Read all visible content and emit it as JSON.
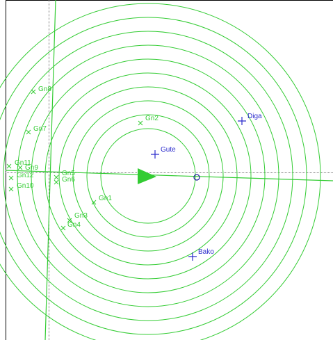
{
  "colors": {
    "rings": "#33cc33",
    "guide": "#888888",
    "frame": "#000000",
    "station": "#2b2bcc",
    "background": "#ffffff"
  },
  "stations": [
    {
      "name": "Gute",
      "icon": "plus-marker-icon"
    },
    {
      "name": "Diga",
      "icon": "plus-marker-icon"
    },
    {
      "name": "Bako",
      "icon": "plus-marker-icon"
    }
  ],
  "grid_nodes": [
    {
      "name": "Gn1"
    },
    {
      "name": "Gn2"
    },
    {
      "name": "Gn3"
    },
    {
      "name": "Gn4"
    },
    {
      "name": "Gn5"
    },
    {
      "name": "Gn6"
    },
    {
      "name": "Gn7"
    },
    {
      "name": "Gn8"
    },
    {
      "name": "Gn9"
    },
    {
      "name": "Gn10"
    },
    {
      "name": "Gn11"
    },
    {
      "name": "Gn12"
    }
  ],
  "ring_count": 10
}
